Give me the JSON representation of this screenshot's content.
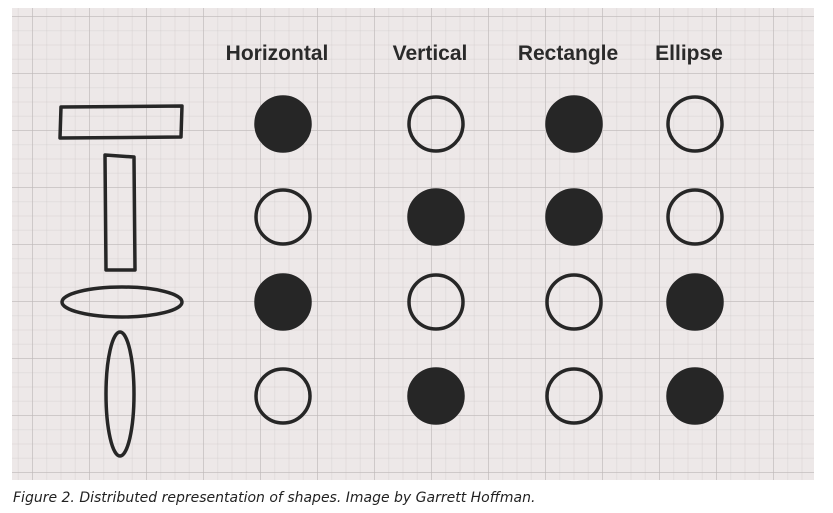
{
  "columns": [
    "Horizontal",
    "Vertical",
    "Rectangle",
    "Ellipse"
  ],
  "rows": [
    {
      "shape": "horizontal-rectangle",
      "units": [
        1,
        0,
        1,
        0
      ]
    },
    {
      "shape": "vertical-rectangle",
      "units": [
        0,
        1,
        1,
        0
      ]
    },
    {
      "shape": "horizontal-ellipse",
      "units": [
        1,
        0,
        0,
        1
      ]
    },
    {
      "shape": "vertical-ellipse",
      "units": [
        0,
        1,
        0,
        1
      ]
    }
  ],
  "colors": {
    "filled": "#262626",
    "stroke": "#262626",
    "board": "#ede8e8"
  },
  "caption": "Figure 2. Distributed representation of shapes. Image by Garrett Hoffman."
}
